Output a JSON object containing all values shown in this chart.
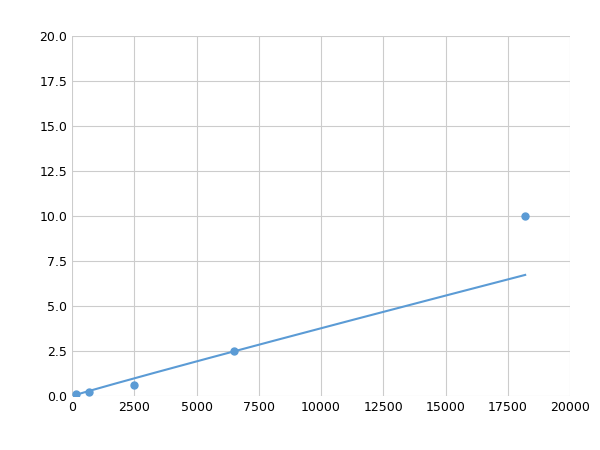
{
  "x": [
    150,
    700,
    2500,
    6500,
    18200
  ],
  "y": [
    0.1,
    0.2,
    0.6,
    2.5,
    10.0
  ],
  "line_color": "#5b9bd5",
  "marker_color": "#5b9bd5",
  "marker_size": 5,
  "xlim": [
    0,
    20000
  ],
  "ylim": [
    0,
    20.0
  ],
  "xticks": [
    0,
    2500,
    5000,
    7500,
    10000,
    12500,
    15000,
    17500,
    20000
  ],
  "yticks": [
    0.0,
    2.5,
    5.0,
    7.5,
    10.0,
    12.5,
    15.0,
    17.5,
    20.0
  ],
  "grid_color": "#cccccc",
  "background_color": "#ffffff",
  "figsize": [
    6.0,
    4.5
  ],
  "dpi": 100
}
